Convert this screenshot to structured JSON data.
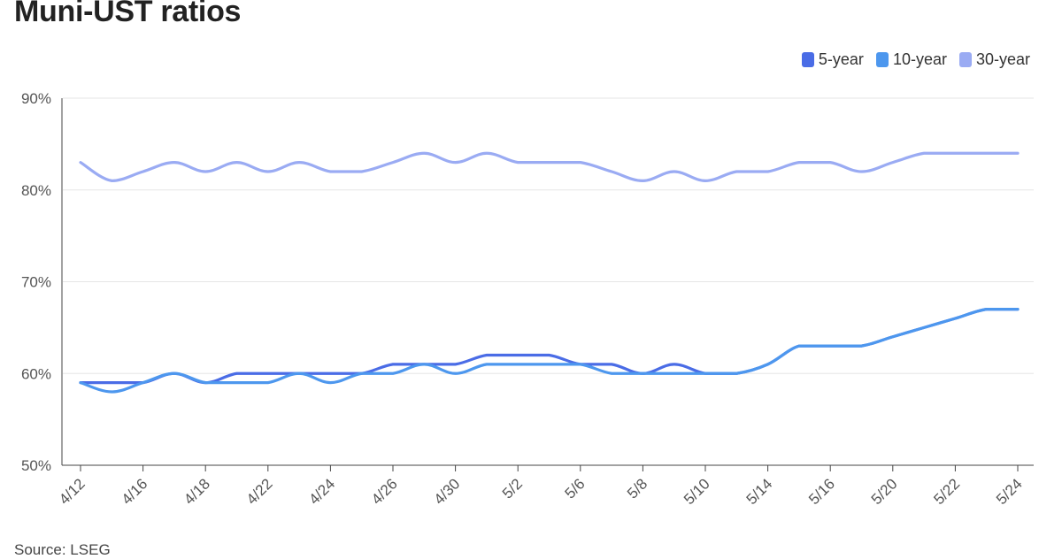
{
  "title": "Muni-UST ratios",
  "source": "Source: LSEG",
  "chart_data": {
    "type": "line",
    "title": "Muni-UST ratios",
    "xlabel": "",
    "ylabel": "",
    "ylim": [
      50,
      90
    ],
    "yticks": [
      "50%",
      "60%",
      "70%",
      "80%",
      "90%"
    ],
    "ytick_values": [
      50,
      60,
      70,
      80,
      90
    ],
    "grid": "horizontal",
    "legend_position": "top-right",
    "xtick_labels": [
      "4/12",
      "4/16",
      "4/18",
      "4/22",
      "4/24",
      "4/26",
      "4/30",
      "5/2",
      "5/6",
      "5/8",
      "5/10",
      "5/14",
      "5/16",
      "5/20",
      "5/22",
      "5/24"
    ],
    "x": [
      "4/12",
      "4/15",
      "4/16",
      "4/17",
      "4/18",
      "4/19",
      "4/22",
      "4/23",
      "4/24",
      "4/25",
      "4/26",
      "4/29",
      "4/30",
      "5/1",
      "5/2",
      "5/3",
      "5/6",
      "5/7",
      "5/8",
      "5/9",
      "5/10",
      "5/13",
      "5/14",
      "5/15",
      "5/16",
      "5/17",
      "5/20",
      "5/21",
      "5/22",
      "5/23",
      "5/24"
    ],
    "series": [
      {
        "name": "5-year",
        "color": "#4a6ce6",
        "values": [
          59,
          59,
          59,
          60,
          59,
          60,
          60,
          60,
          60,
          60,
          61,
          61,
          61,
          62,
          62,
          62,
          61,
          61,
          60,
          61,
          60,
          60,
          61,
          63,
          63,
          63,
          64,
          65,
          66,
          67,
          67
        ]
      },
      {
        "name": "10-year",
        "color": "#4d97ee",
        "values": [
          59,
          58,
          59,
          60,
          59,
          59,
          59,
          60,
          59,
          60,
          60,
          61,
          60,
          61,
          61,
          61,
          61,
          60,
          60,
          60,
          60,
          60,
          61,
          63,
          63,
          63,
          64,
          65,
          66,
          67,
          67
        ]
      },
      {
        "name": "30-year",
        "color": "#9aabf3",
        "values": [
          83,
          81,
          82,
          83,
          82,
          83,
          82,
          83,
          82,
          82,
          83,
          84,
          83,
          84,
          83,
          83,
          83,
          82,
          81,
          82,
          81,
          82,
          82,
          83,
          83,
          82,
          83,
          84,
          84,
          84,
          84
        ]
      }
    ]
  }
}
